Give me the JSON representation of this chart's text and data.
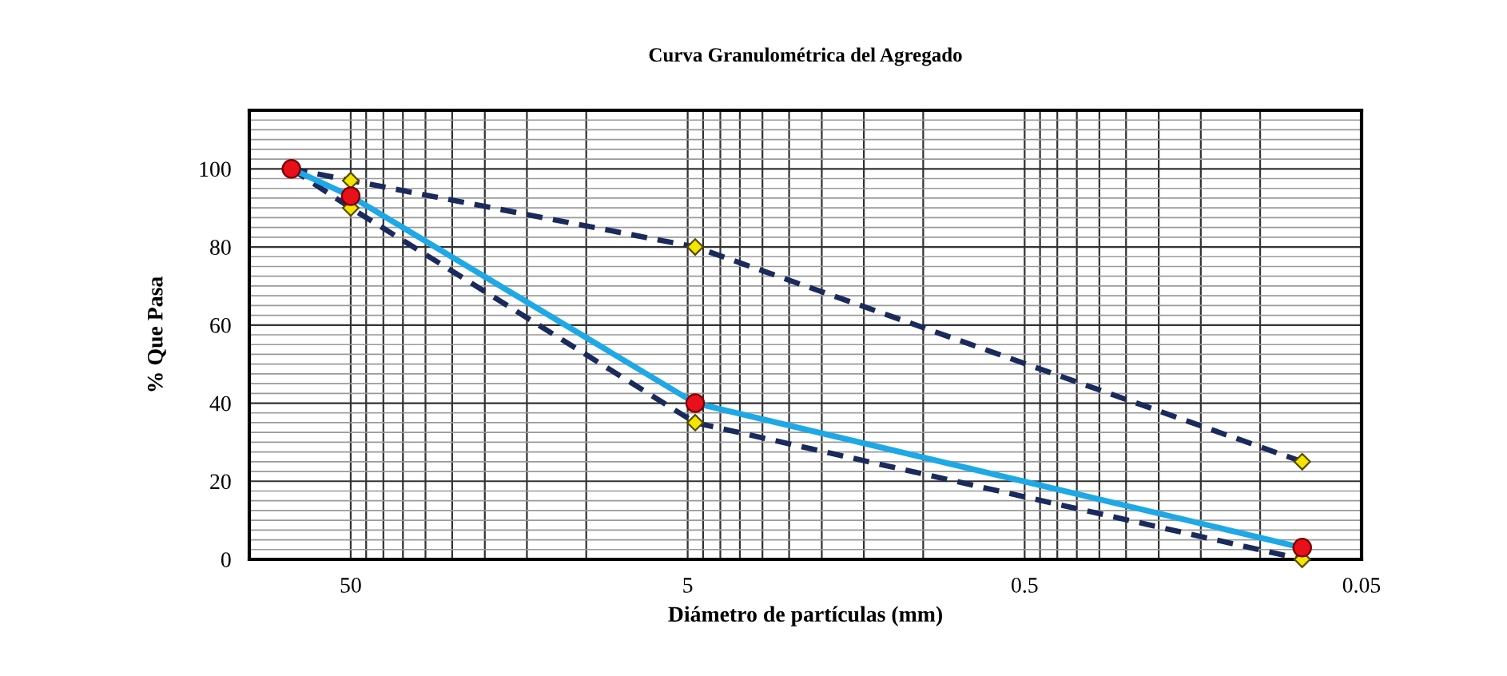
{
  "chart_data": {
    "type": "line",
    "title": "Curva Granulométrica del Agregado",
    "xlabel": "Diámetro de partículas (mm)",
    "ylabel": "% Que Pasa",
    "log": "x",
    "x": [
      75,
      50,
      4.75,
      0.075
    ],
    "xlim": [
      100,
      0.05
    ],
    "xticks": [
      50,
      5,
      0.5,
      0.05
    ],
    "ylim": [
      0,
      115
    ],
    "yticks": [
      0,
      20,
      40,
      60,
      80,
      100
    ],
    "grid": true,
    "legend": false,
    "series": [
      {
        "color": "#1b2a5c",
        "line_style": "dashed",
        "marker": "diamond",
        "colors": [
          "#f2e600",
          "#f2e600",
          "#f2e600",
          "#f2e600"
        ],
        "values": [
          100,
          97,
          80,
          25
        ]
      },
      {
        "color": "#1b2a5c",
        "line_style": "dashed",
        "marker": "diamond",
        "colors": [
          "#f2e600",
          "#f2e600",
          "#f2e600",
          "#f2e600"
        ],
        "values": [
          100,
          90,
          35,
          0
        ]
      },
      {
        "color": "#1ea8e6",
        "line_style": "solid",
        "marker": "circle",
        "colors": [
          "#e8101a",
          "#e8101a",
          "#e8101a",
          "#e8101a"
        ],
        "values": [
          100,
          93,
          40,
          3
        ]
      }
    ]
  }
}
